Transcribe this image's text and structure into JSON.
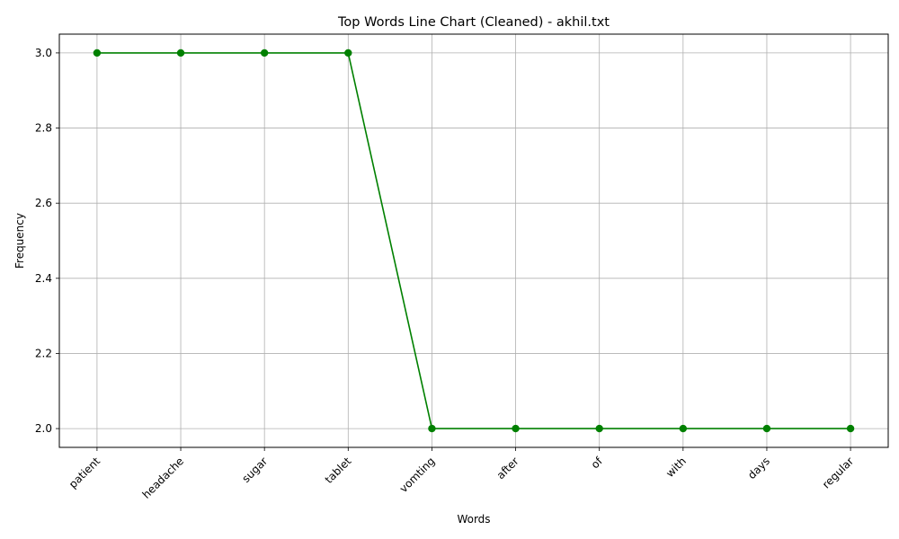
{
  "chart_data": {
    "type": "line",
    "title": "Top Words Line Chart (Cleaned) - akhil.txt",
    "xlabel": "Words",
    "ylabel": "Frequency",
    "categories": [
      "patient",
      "headache",
      "sugar",
      "tablet",
      "vomting",
      "after",
      "of",
      "with",
      "days",
      "regular"
    ],
    "series": [
      {
        "values": [
          3,
          3,
          3,
          3,
          2,
          2,
          2,
          2,
          2,
          2
        ]
      }
    ],
    "ylim": [
      1.95,
      3.05
    ],
    "yticks": [
      "2.0",
      "2.2",
      "2.4",
      "2.6",
      "2.8",
      "3.0"
    ],
    "grid": true,
    "line_color": "#008000",
    "marker": "circle"
  }
}
